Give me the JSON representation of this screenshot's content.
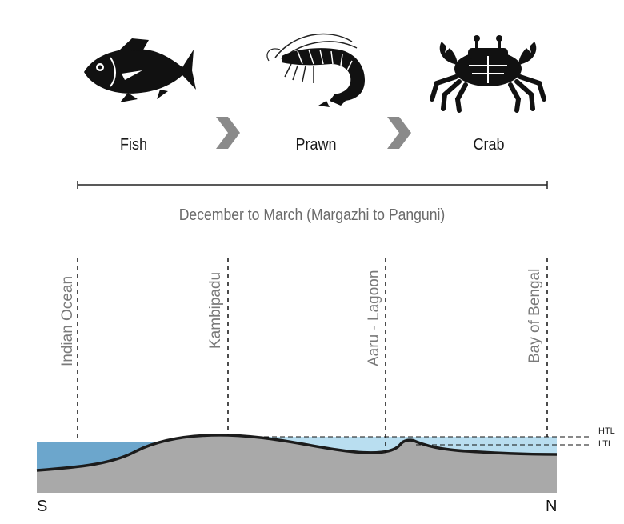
{
  "sequence": {
    "animals": [
      {
        "label": "Fish",
        "icon": "fish-icon"
      },
      {
        "label": "Prawn",
        "icon": "prawn-icon"
      },
      {
        "label": "Crab",
        "icon": "crab-icon"
      }
    ],
    "arrow_icon": "chevron-right-icon",
    "period": "December to March (Margazhi to Panguni)"
  },
  "profile": {
    "places": [
      "Indian Ocean",
      "Kambipadu",
      "Aaru - Lagoon",
      "Bay of Bengal"
    ],
    "levels": {
      "high": "HTL",
      "low": "LTL"
    },
    "directions": {
      "left": "S",
      "right": "N"
    },
    "colors": {
      "ocean": "#6ca6cc",
      "lagoon": "#b9def0",
      "land": "#a9a9a9",
      "ground_line": "#1c1c1c",
      "chevron": "#8a8a8a",
      "place_text": "#7a7a7a"
    }
  }
}
